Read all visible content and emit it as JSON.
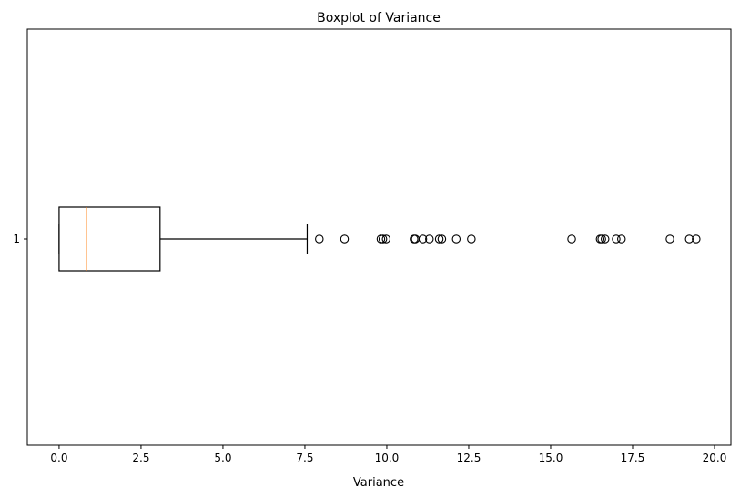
{
  "chart_data": {
    "type": "boxplot",
    "title": "Boxplot of Variance",
    "xlabel": "Variance",
    "ylabel": "",
    "orientation": "horizontal",
    "xlim": [
      -0.97,
      20.5
    ],
    "xticks": [
      0.0,
      2.5,
      5.0,
      7.5,
      10.0,
      12.5,
      15.0,
      17.5,
      20.0
    ],
    "xtick_labels": [
      "0.0",
      "2.5",
      "5.0",
      "7.5",
      "10.0",
      "12.5",
      "15.0",
      "17.5",
      "20.0"
    ],
    "categories": [
      "1"
    ],
    "box": {
      "whisker_low": 0.0,
      "q1": 0.0,
      "median": 0.83,
      "q3": 3.08,
      "whisker_high": 7.57
    },
    "outliers": [
      7.94,
      8.71,
      9.82,
      9.88,
      9.98,
      10.83,
      10.87,
      11.1,
      11.3,
      11.6,
      11.68,
      12.12,
      12.58,
      15.64,
      16.51,
      16.56,
      16.66,
      17.0,
      17.16,
      18.64,
      19.23,
      19.44
    ],
    "grid": false,
    "colors": {
      "box": "#000000",
      "median": "#ff7f0e",
      "outlier": "#000000"
    }
  }
}
